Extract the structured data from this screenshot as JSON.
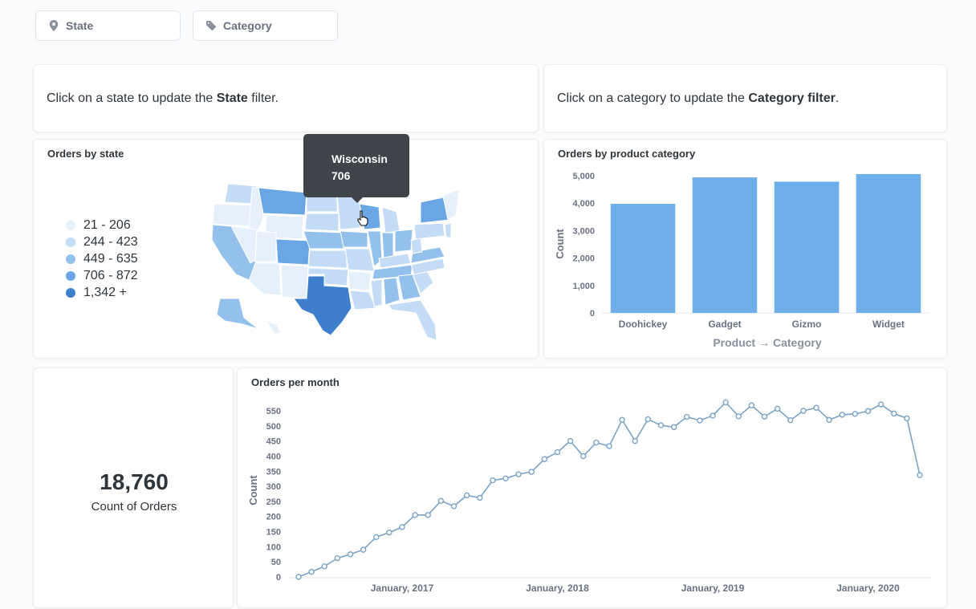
{
  "filters": {
    "state": {
      "label": "State",
      "icon": "location-pin-icon"
    },
    "category": {
      "label": "Category",
      "icon": "tag-icon"
    }
  },
  "text_cards": {
    "state": {
      "prefix": "Click on a state to update the ",
      "bold": "State",
      "suffix": " filter."
    },
    "category": {
      "prefix": "Click on a category to update the ",
      "bold": "Category filter",
      "suffix": "."
    }
  },
  "map_card": {
    "title": "Orders by state",
    "legend": [
      {
        "label": "21 - 206",
        "color": "#e6f0fb"
      },
      {
        "label": "244 - 423",
        "color": "#c4dcf5"
      },
      {
        "label": "449 - 635",
        "color": "#94c0ec"
      },
      {
        "label": "706 - 872",
        "color": "#6aa6e3"
      },
      {
        "label": "1,342 +",
        "color": "#3d7fcc"
      }
    ],
    "tooltip": {
      "state": "Wisconsin",
      "value": "706"
    }
  },
  "scalar_card": {
    "value": "18,760",
    "label": "Count of Orders"
  },
  "colors": {
    "bar": "#6eaee9",
    "line": "#7aa3c6",
    "grid_text": "#6a7180"
  },
  "chart_data": [
    {
      "type": "bar",
      "title": "Orders by product category",
      "categories": [
        "Doohickey",
        "Gadget",
        "Gizmo",
        "Widget"
      ],
      "values": [
        3976,
        4939,
        4784,
        5061
      ],
      "xlabel": "Product → Category",
      "ylabel": "Count",
      "ylim": [
        0,
        5000
      ],
      "yticks": [
        0,
        1000,
        2000,
        3000,
        4000,
        5000
      ],
      "ytick_labels": [
        "0",
        "1,000",
        "2,000",
        "3,000",
        "4,000",
        "5,000"
      ],
      "grid": false
    },
    {
      "type": "line",
      "title": "Orders per month",
      "ylabel": "Count",
      "x_start": "2016-05",
      "x_tick_labels": [
        {
          "label": "January, 2017",
          "month_index": 8
        },
        {
          "label": "January, 2018",
          "month_index": 20
        },
        {
          "label": "January, 2019",
          "month_index": 32
        },
        {
          "label": "January, 2020",
          "month_index": 44
        }
      ],
      "values": [
        0,
        17,
        35,
        62,
        75,
        90,
        132,
        147,
        165,
        205,
        205,
        252,
        234,
        270,
        262,
        320,
        326,
        340,
        348,
        390,
        413,
        450,
        400,
        445,
        433,
        520,
        450,
        522,
        502,
        496,
        530,
        518,
        534,
        578,
        532,
        568,
        531,
        557,
        519,
        550,
        560,
        520,
        537,
        540,
        549,
        571,
        541,
        525,
        337
      ],
      "ylim": [
        0,
        550
      ],
      "yticks": [
        0,
        50,
        100,
        150,
        200,
        250,
        300,
        350,
        400,
        450,
        500,
        550
      ],
      "grid": false
    }
  ]
}
